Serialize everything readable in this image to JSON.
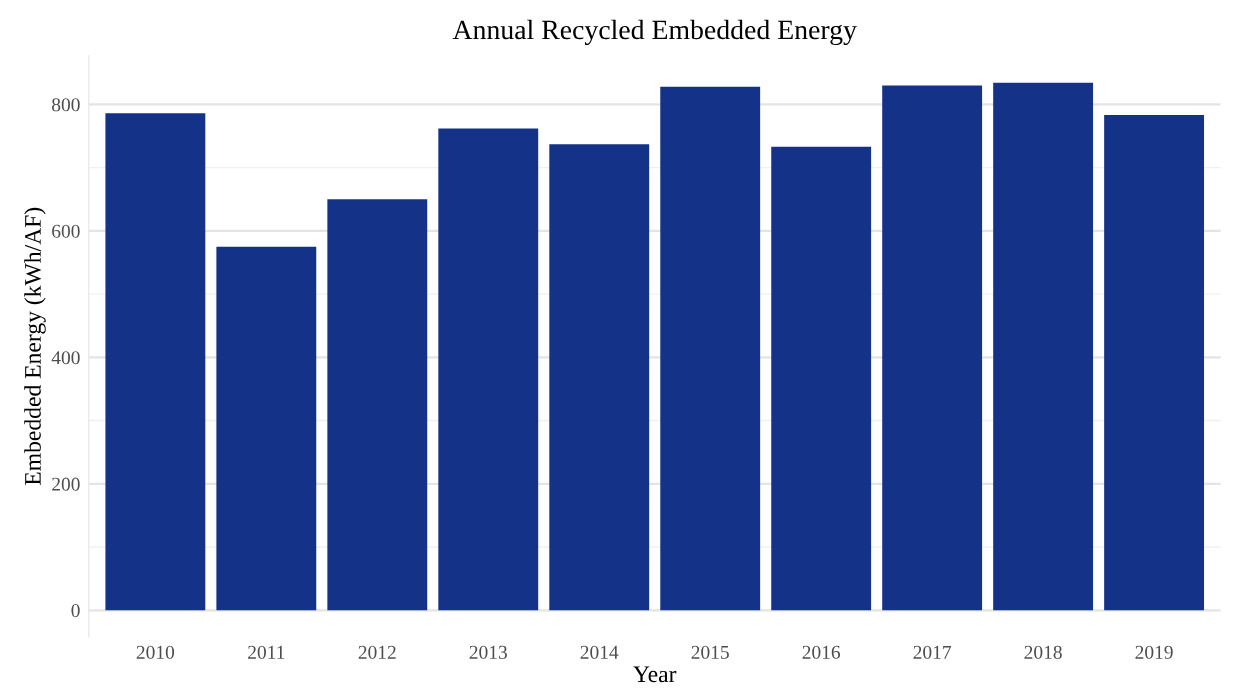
{
  "chart_data": {
    "type": "bar",
    "title": "Annual Recycled Embedded Energy",
    "xlabel": "Year",
    "ylabel": "Embedded Energy (kWh/AF)",
    "categories": [
      "2010",
      "2011",
      "2012",
      "2013",
      "2014",
      "2015",
      "2016",
      "2017",
      "2018",
      "2019"
    ],
    "values": [
      786,
      575,
      650,
      762,
      737,
      828,
      733,
      830,
      834,
      783
    ],
    "color": "#143287",
    "ylim": [
      -42,
      877
    ],
    "yticks": [
      0,
      {
        "value": 100,
        "label": null
      },
      200,
      {
        "value": 300,
        "label": null
      },
      400,
      {
        "value": 500,
        "label": null
      },
      600,
      {
        "value": 700,
        "label": null
      },
      800
    ],
    "grid": "y"
  }
}
